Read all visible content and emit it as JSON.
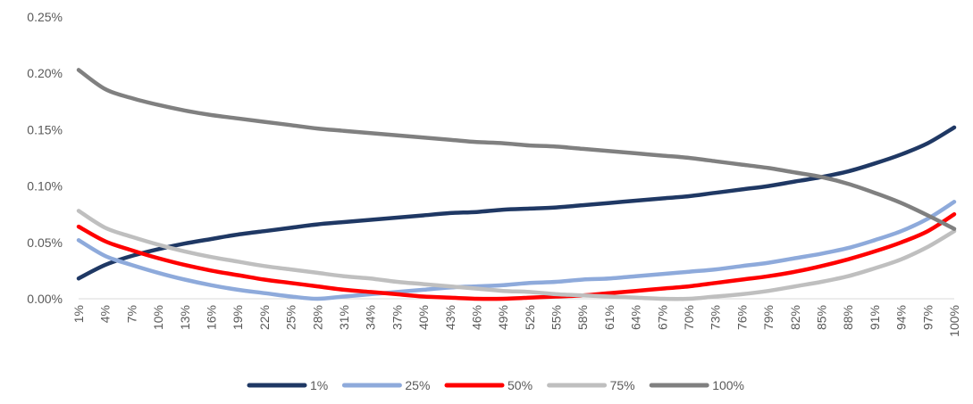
{
  "chart_data": {
    "type": "line",
    "title": "",
    "xlabel": "",
    "ylabel": "",
    "ylim": [
      0,
      0.25
    ],
    "y_ticks": [
      "0.00%",
      "0.05%",
      "0.10%",
      "0.15%",
      "0.20%",
      "0.25%"
    ],
    "y_tick_values": [
      0,
      0.05,
      0.1,
      0.15,
      0.2,
      0.25
    ],
    "x_range": [
      1,
      100
    ],
    "x_ticks": [
      "1%",
      "4%",
      "7%",
      "10%",
      "13%",
      "16%",
      "19%",
      "22%",
      "25%",
      "28%",
      "31%",
      "34%",
      "37%",
      "40%",
      "43%",
      "46%",
      "49%",
      "52%",
      "55%",
      "58%",
      "61%",
      "64%",
      "67%",
      "70%",
      "73%",
      "76%",
      "79%",
      "82%",
      "85%",
      "88%",
      "91%",
      "94%",
      "97%",
      "100%"
    ],
    "x_tick_values": [
      1,
      4,
      7,
      10,
      13,
      16,
      19,
      22,
      25,
      28,
      31,
      34,
      37,
      40,
      43,
      46,
      49,
      52,
      55,
      58,
      61,
      64,
      67,
      70,
      73,
      76,
      79,
      82,
      85,
      88,
      91,
      94,
      97,
      100
    ],
    "grid": false,
    "legend_position": "bottom",
    "series": [
      {
        "name": "1%",
        "color": "#1f3864",
        "points": [
          [
            1,
            0.018
          ],
          [
            4,
            0.03
          ],
          [
            7,
            0.038
          ],
          [
            10,
            0.044
          ],
          [
            13,
            0.049
          ],
          [
            16,
            0.053
          ],
          [
            19,
            0.057
          ],
          [
            22,
            0.06
          ],
          [
            25,
            0.063
          ],
          [
            28,
            0.066
          ],
          [
            31,
            0.068
          ],
          [
            34,
            0.07
          ],
          [
            37,
            0.072
          ],
          [
            40,
            0.074
          ],
          [
            43,
            0.076
          ],
          [
            46,
            0.077
          ],
          [
            49,
            0.079
          ],
          [
            52,
            0.08
          ],
          [
            55,
            0.081
          ],
          [
            58,
            0.083
          ],
          [
            61,
            0.085
          ],
          [
            64,
            0.087
          ],
          [
            67,
            0.089
          ],
          [
            70,
            0.091
          ],
          [
            73,
            0.094
          ],
          [
            76,
            0.097
          ],
          [
            79,
            0.1
          ],
          [
            82,
            0.104
          ],
          [
            85,
            0.108
          ],
          [
            88,
            0.113
          ],
          [
            91,
            0.12
          ],
          [
            94,
            0.128
          ],
          [
            97,
            0.138
          ],
          [
            100,
            0.152
          ]
        ]
      },
      {
        "name": "25%",
        "color": "#8eaadb",
        "points": [
          [
            1,
            0.052
          ],
          [
            4,
            0.038
          ],
          [
            7,
            0.03
          ],
          [
            10,
            0.023
          ],
          [
            13,
            0.017
          ],
          [
            16,
            0.012
          ],
          [
            19,
            0.008
          ],
          [
            22,
            0.005
          ],
          [
            25,
            0.002
          ],
          [
            28,
            0.0
          ],
          [
            31,
            0.002
          ],
          [
            34,
            0.004
          ],
          [
            37,
            0.006
          ],
          [
            40,
            0.008
          ],
          [
            43,
            0.01
          ],
          [
            46,
            0.011
          ],
          [
            49,
            0.012
          ],
          [
            52,
            0.014
          ],
          [
            55,
            0.015
          ],
          [
            58,
            0.017
          ],
          [
            61,
            0.018
          ],
          [
            64,
            0.02
          ],
          [
            67,
            0.022
          ],
          [
            70,
            0.024
          ],
          [
            73,
            0.026
          ],
          [
            76,
            0.029
          ],
          [
            79,
            0.032
          ],
          [
            82,
            0.036
          ],
          [
            85,
            0.04
          ],
          [
            88,
            0.045
          ],
          [
            91,
            0.052
          ],
          [
            94,
            0.06
          ],
          [
            97,
            0.071
          ],
          [
            100,
            0.086
          ]
        ]
      },
      {
        "name": "50%",
        "color": "#ff0000",
        "points": [
          [
            1,
            0.064
          ],
          [
            4,
            0.051
          ],
          [
            7,
            0.043
          ],
          [
            10,
            0.036
          ],
          [
            13,
            0.03
          ],
          [
            16,
            0.025
          ],
          [
            19,
            0.021
          ],
          [
            22,
            0.017
          ],
          [
            25,
            0.014
          ],
          [
            28,
            0.011
          ],
          [
            31,
            0.008
          ],
          [
            34,
            0.006
          ],
          [
            37,
            0.004
          ],
          [
            40,
            0.002
          ],
          [
            43,
            0.001
          ],
          [
            46,
            0.0
          ],
          [
            49,
            0.0
          ],
          [
            52,
            0.001
          ],
          [
            55,
            0.002
          ],
          [
            58,
            0.003
          ],
          [
            61,
            0.005
          ],
          [
            64,
            0.007
          ],
          [
            67,
            0.009
          ],
          [
            70,
            0.011
          ],
          [
            73,
            0.014
          ],
          [
            76,
            0.017
          ],
          [
            79,
            0.02
          ],
          [
            82,
            0.024
          ],
          [
            85,
            0.029
          ],
          [
            88,
            0.035
          ],
          [
            91,
            0.042
          ],
          [
            94,
            0.05
          ],
          [
            97,
            0.06
          ],
          [
            100,
            0.075
          ]
        ]
      },
      {
        "name": "75%",
        "color": "#bfbfbf",
        "points": [
          [
            1,
            0.078
          ],
          [
            4,
            0.063
          ],
          [
            7,
            0.055
          ],
          [
            10,
            0.048
          ],
          [
            13,
            0.042
          ],
          [
            16,
            0.037
          ],
          [
            19,
            0.033
          ],
          [
            22,
            0.029
          ],
          [
            25,
            0.026
          ],
          [
            28,
            0.023
          ],
          [
            31,
            0.02
          ],
          [
            34,
            0.018
          ],
          [
            37,
            0.015
          ],
          [
            40,
            0.013
          ],
          [
            43,
            0.011
          ],
          [
            46,
            0.009
          ],
          [
            49,
            0.007
          ],
          [
            52,
            0.006
          ],
          [
            55,
            0.004
          ],
          [
            58,
            0.003
          ],
          [
            61,
            0.002
          ],
          [
            64,
            0.001
          ],
          [
            67,
            0.0
          ],
          [
            70,
            0.0
          ],
          [
            73,
            0.002
          ],
          [
            76,
            0.004
          ],
          [
            79,
            0.007
          ],
          [
            82,
            0.011
          ],
          [
            85,
            0.015
          ],
          [
            88,
            0.02
          ],
          [
            91,
            0.027
          ],
          [
            94,
            0.035
          ],
          [
            97,
            0.046
          ],
          [
            100,
            0.06
          ]
        ]
      },
      {
        "name": "100%",
        "color": "#808080",
        "points": [
          [
            1,
            0.203
          ],
          [
            4,
            0.186
          ],
          [
            7,
            0.178
          ],
          [
            10,
            0.172
          ],
          [
            13,
            0.167
          ],
          [
            16,
            0.163
          ],
          [
            19,
            0.16
          ],
          [
            22,
            0.157
          ],
          [
            25,
            0.154
          ],
          [
            28,
            0.151
          ],
          [
            31,
            0.149
          ],
          [
            34,
            0.147
          ],
          [
            37,
            0.145
          ],
          [
            40,
            0.143
          ],
          [
            43,
            0.141
          ],
          [
            46,
            0.139
          ],
          [
            49,
            0.138
          ],
          [
            52,
            0.136
          ],
          [
            55,
            0.135
          ],
          [
            58,
            0.133
          ],
          [
            61,
            0.131
          ],
          [
            64,
            0.129
          ],
          [
            67,
            0.127
          ],
          [
            70,
            0.125
          ],
          [
            73,
            0.122
          ],
          [
            76,
            0.119
          ],
          [
            79,
            0.116
          ],
          [
            82,
            0.112
          ],
          [
            85,
            0.108
          ],
          [
            88,
            0.102
          ],
          [
            91,
            0.094
          ],
          [
            94,
            0.085
          ],
          [
            97,
            0.074
          ],
          [
            100,
            0.062
          ]
        ]
      }
    ]
  }
}
